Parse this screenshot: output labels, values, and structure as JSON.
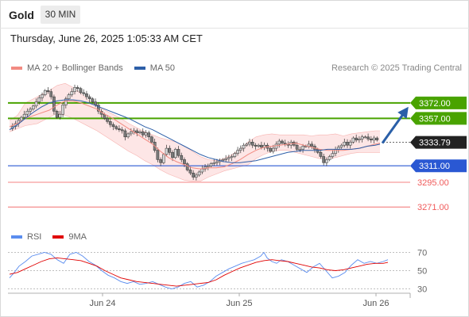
{
  "header": {
    "instrument": "Gold",
    "timeframe": "30 MIN",
    "datetime": "Thursday, June 26, 2025 1:05:33 AM CET"
  },
  "legend": {
    "price": [
      {
        "name": "MA 20 + Bollinger Bands",
        "color": "#f28b82"
      },
      {
        "name": "MA 50",
        "color": "#2d5fa8"
      }
    ],
    "rsi": [
      {
        "name": "RSI",
        "color": "#5b8def"
      },
      {
        "name": "9MA",
        "color": "#e00000"
      }
    ]
  },
  "credit": "Research © 2025 Trading Central",
  "colors": {
    "up": "#d6d6d6",
    "down": "#7a7a7a",
    "bull": "#49a300",
    "support": "#2a58d3",
    "sub": "#f05a5a",
    "arrow": "#2a5fa8",
    "last": "#222222"
  },
  "chart_data": {
    "type": "candlestick",
    "x_ticks": [
      "Jun 24",
      "Jun 25",
      "Jun 26"
    ],
    "ylim": [
      3255,
      3395
    ],
    "last_price": {
      "label": "3333.79",
      "value": 3333.79
    },
    "levels": [
      {
        "label": "3372.00",
        "value": 3372,
        "kind": "resistance"
      },
      {
        "label": "3357.00",
        "value": 3357,
        "kind": "resistance"
      },
      {
        "label": "3311.00",
        "value": 3311,
        "kind": "support"
      },
      {
        "label": "3295.00",
        "value": 3295,
        "kind": "sub"
      },
      {
        "label": "3271.00",
        "value": 3271,
        "kind": "sub"
      }
    ],
    "close_path": [
      3347,
      3349,
      3352,
      3355,
      3358,
      3361,
      3364,
      3366,
      3369,
      3373,
      3377,
      3380,
      3384,
      3383,
      3378,
      3364,
      3358,
      3361,
      3370,
      3376,
      3380,
      3383,
      3387,
      3386,
      3382,
      3381,
      3378,
      3376,
      3373,
      3370,
      3364,
      3361,
      3357,
      3354,
      3351,
      3349,
      3347,
      3346,
      3345,
      3339,
      3342,
      3344,
      3345,
      3343,
      3344,
      3341,
      3343,
      3339,
      3334,
      3326,
      3317,
      3314,
      3322,
      3328,
      3324,
      3319,
      3327,
      3321,
      3317,
      3313,
      3307,
      3304,
      3300,
      3302,
      3305,
      3308,
      3310,
      3311,
      3313,
      3314,
      3315,
      3316,
      3317,
      3318,
      3319,
      3320,
      3323,
      3326,
      3328,
      3331,
      3332,
      3334,
      3331,
      3330,
      3331,
      3329,
      3331,
      3328,
      3325,
      3328,
      3332,
      3335,
      3333,
      3332,
      3331,
      3334,
      3331,
      3327,
      3327,
      3330,
      3330,
      3332,
      3330,
      3327,
      3324,
      3320,
      3314,
      3317,
      3320,
      3323,
      3327,
      3329,
      3331,
      3334,
      3331,
      3334,
      3338,
      3336,
      3337,
      3339,
      3339,
      3337,
      3336,
      3338,
      3336
    ],
    "bollinger": {
      "upper": [
        [
          0,
          3355
        ],
        [
          10,
          3360
        ],
        [
          20,
          3372
        ],
        [
          35,
          3378
        ],
        [
          50,
          3384
        ],
        [
          60,
          3389
        ],
        [
          70,
          3391
        ],
        [
          80,
          3387
        ],
        [
          90,
          3381
        ],
        [
          100,
          3374
        ],
        [
          110,
          3369
        ],
        [
          120,
          3365
        ],
        [
          130,
          3361
        ],
        [
          140,
          3357
        ],
        [
          150,
          3352
        ],
        [
          160,
          3348
        ],
        [
          170,
          3344
        ],
        [
          180,
          3341
        ],
        [
          190,
          3338
        ],
        [
          200,
          3336
        ],
        [
          210,
          3334
        ],
        [
          220,
          3330
        ],
        [
          230,
          3325
        ],
        [
          240,
          3320
        ],
        [
          250,
          3317
        ],
        [
          260,
          3316
        ],
        [
          270,
          3318
        ],
        [
          280,
          3322
        ],
        [
          290,
          3327
        ],
        [
          300,
          3334
        ],
        [
          310,
          3339
        ],
        [
          320,
          3341
        ],
        [
          330,
          3342
        ],
        [
          340,
          3341
        ],
        [
          350,
          3341
        ],
        [
          360,
          3341
        ],
        [
          370,
          3341
        ],
        [
          380,
          3340
        ],
        [
          390,
          3341
        ],
        [
          400,
          3341
        ],
        [
          410,
          3342
        ],
        [
          420,
          3340
        ],
        [
          430,
          3342
        ],
        [
          440,
          3343
        ],
        [
          450,
          3344
        ],
        [
          460,
          3345
        ],
        [
          466,
          3345
        ]
      ],
      "lower": [
        [
          0,
          3344
        ],
        [
          10,
          3347
        ],
        [
          20,
          3350
        ],
        [
          35,
          3352
        ],
        [
          50,
          3358
        ],
        [
          60,
          3362
        ],
        [
          70,
          3360
        ],
        [
          80,
          3357
        ],
        [
          90,
          3353
        ],
        [
          100,
          3349
        ],
        [
          110,
          3345
        ],
        [
          120,
          3340
        ],
        [
          130,
          3335
        ],
        [
          140,
          3330
        ],
        [
          150,
          3325
        ],
        [
          160,
          3321
        ],
        [
          170,
          3316
        ],
        [
          180,
          3312
        ],
        [
          190,
          3307
        ],
        [
          200,
          3303
        ],
        [
          210,
          3300
        ],
        [
          220,
          3297
        ],
        [
          230,
          3296
        ],
        [
          240,
          3296
        ],
        [
          250,
          3300
        ],
        [
          260,
          3303
        ],
        [
          270,
          3306
        ],
        [
          280,
          3308
        ],
        [
          290,
          3310
        ],
        [
          300,
          3312
        ],
        [
          310,
          3318
        ],
        [
          320,
          3322
        ],
        [
          330,
          3325
        ],
        [
          340,
          3326
        ],
        [
          350,
          3326
        ],
        [
          360,
          3324
        ],
        [
          370,
          3322
        ],
        [
          380,
          3320
        ],
        [
          390,
          3318
        ],
        [
          400,
          3318
        ],
        [
          410,
          3319
        ],
        [
          420,
          3321
        ],
        [
          430,
          3323
        ],
        [
          440,
          3324
        ],
        [
          450,
          3324
        ],
        [
          460,
          3324
        ],
        [
          466,
          3324
        ]
      ],
      "ma20": [
        [
          0,
          3349
        ],
        [
          10,
          3352
        ],
        [
          20,
          3357
        ],
        [
          35,
          3361
        ],
        [
          50,
          3365
        ],
        [
          60,
          3370
        ],
        [
          70,
          3374
        ],
        [
          80,
          3374
        ],
        [
          90,
          3372
        ],
        [
          100,
          3369
        ],
        [
          110,
          3366
        ],
        [
          120,
          3361
        ],
        [
          130,
          3357
        ],
        [
          140,
          3352
        ],
        [
          150,
          3347
        ],
        [
          160,
          3342
        ],
        [
          170,
          3337
        ],
        [
          180,
          3332
        ],
        [
          190,
          3325
        ],
        [
          200,
          3319
        ],
        [
          210,
          3315
        ],
        [
          220,
          3312
        ],
        [
          230,
          3309
        ],
        [
          240,
          3308
        ],
        [
          250,
          3309
        ],
        [
          260,
          3309
        ],
        [
          270,
          3310
        ],
        [
          280,
          3313
        ],
        [
          290,
          3317
        ],
        [
          300,
          3322
        ],
        [
          310,
          3326
        ],
        [
          320,
          3329
        ],
        [
          330,
          3330
        ],
        [
          340,
          3331
        ],
        [
          350,
          3332
        ],
        [
          360,
          3333
        ],
        [
          370,
          3331
        ],
        [
          380,
          3329
        ],
        [
          390,
          3327
        ],
        [
          400,
          3326
        ],
        [
          410,
          3326
        ],
        [
          420,
          3326
        ],
        [
          430,
          3327
        ],
        [
          440,
          3328
        ],
        [
          450,
          3330
        ],
        [
          460,
          3332
        ],
        [
          466,
          3333
        ]
      ],
      "ma50": [
        [
          0,
          3346
        ],
        [
          10,
          3351
        ],
        [
          20,
          3357
        ],
        [
          30,
          3363
        ],
        [
          40,
          3368
        ],
        [
          50,
          3372
        ],
        [
          60,
          3374
        ],
        [
          70,
          3375
        ],
        [
          80,
          3375
        ],
        [
          90,
          3374
        ],
        [
          100,
          3372
        ],
        [
          110,
          3369
        ],
        [
          120,
          3366
        ],
        [
          130,
          3363
        ],
        [
          140,
          3360
        ],
        [
          150,
          3357
        ],
        [
          160,
          3353
        ],
        [
          170,
          3349
        ],
        [
          180,
          3346
        ],
        [
          190,
          3342
        ],
        [
          200,
          3338
        ],
        [
          210,
          3334
        ],
        [
          220,
          3330
        ],
        [
          230,
          3326
        ],
        [
          240,
          3322
        ],
        [
          250,
          3319
        ],
        [
          260,
          3317
        ],
        [
          270,
          3315
        ],
        [
          280,
          3314
        ],
        [
          290,
          3314
        ],
        [
          300,
          3315
        ],
        [
          310,
          3316
        ],
        [
          320,
          3318
        ],
        [
          330,
          3320
        ],
        [
          340,
          3322
        ],
        [
          350,
          3324
        ],
        [
          360,
          3325
        ],
        [
          370,
          3326
        ],
        [
          380,
          3326
        ],
        [
          390,
          3326
        ],
        [
          400,
          3327
        ],
        [
          410,
          3327
        ],
        [
          420,
          3327
        ],
        [
          430,
          3327
        ],
        [
          440,
          3328
        ],
        [
          450,
          3330
        ],
        [
          460,
          3331
        ],
        [
          466,
          3332
        ]
      ]
    },
    "forecast_arrow": {
      "from": 3333,
      "to": 3362
    },
    "rsi": {
      "ylim": [
        20,
        80
      ],
      "ticks": [
        {
          "label": "70",
          "value": 70
        },
        {
          "label": "50",
          "value": 50
        },
        {
          "label": "30",
          "value": 30
        }
      ],
      "rsi_path": [
        [
          0,
          42
        ],
        [
          6,
          48
        ],
        [
          12,
          55
        ],
        [
          20,
          60
        ],
        [
          28,
          66
        ],
        [
          36,
          68
        ],
        [
          44,
          70
        ],
        [
          52,
          68
        ],
        [
          60,
          62
        ],
        [
          68,
          58
        ],
        [
          76,
          68
        ],
        [
          84,
          70
        ],
        [
          92,
          66
        ],
        [
          100,
          60
        ],
        [
          108,
          56
        ],
        [
          116,
          50
        ],
        [
          124,
          45
        ],
        [
          132,
          42
        ],
        [
          140,
          38
        ],
        [
          148,
          36
        ],
        [
          156,
          38
        ],
        [
          164,
          35
        ],
        [
          172,
          36
        ],
        [
          180,
          38
        ],
        [
          188,
          35
        ],
        [
          196,
          32
        ],
        [
          204,
          30
        ],
        [
          212,
          32
        ],
        [
          220,
          36
        ],
        [
          228,
          38
        ],
        [
          236,
          32
        ],
        [
          244,
          34
        ],
        [
          252,
          38
        ],
        [
          260,
          44
        ],
        [
          268,
          48
        ],
        [
          276,
          52
        ],
        [
          284,
          55
        ],
        [
          292,
          58
        ],
        [
          300,
          60
        ],
        [
          308,
          62
        ],
        [
          316,
          66
        ],
        [
          320,
          70
        ],
        [
          324,
          64
        ],
        [
          330,
          60
        ],
        [
          336,
          58
        ],
        [
          342,
          62
        ],
        [
          350,
          60
        ],
        [
          358,
          56
        ],
        [
          366,
          52
        ],
        [
          374,
          48
        ],
        [
          382,
          54
        ],
        [
          390,
          58
        ],
        [
          398,
          50
        ],
        [
          406,
          42
        ],
        [
          414,
          44
        ],
        [
          422,
          48
        ],
        [
          430,
          56
        ],
        [
          438,
          62
        ],
        [
          446,
          58
        ],
        [
          454,
          60
        ],
        [
          462,
          58
        ],
        [
          470,
          60
        ],
        [
          476,
          62
        ]
      ],
      "ma_path": [
        [
          0,
          46
        ],
        [
          10,
          48
        ],
        [
          20,
          52
        ],
        [
          30,
          56
        ],
        [
          40,
          60
        ],
        [
          50,
          63
        ],
        [
          60,
          64
        ],
        [
          70,
          63
        ],
        [
          80,
          62
        ],
        [
          90,
          61
        ],
        [
          100,
          58
        ],
        [
          110,
          55
        ],
        [
          120,
          50
        ],
        [
          130,
          46
        ],
        [
          140,
          42
        ],
        [
          150,
          40
        ],
        [
          160,
          38
        ],
        [
          170,
          37
        ],
        [
          180,
          36
        ],
        [
          190,
          35
        ],
        [
          200,
          34
        ],
        [
          210,
          33
        ],
        [
          220,
          34
        ],
        [
          230,
          35
        ],
        [
          240,
          36
        ],
        [
          250,
          37
        ],
        [
          260,
          40
        ],
        [
          270,
          45
        ],
        [
          280,
          49
        ],
        [
          290,
          53
        ],
        [
          300,
          56
        ],
        [
          310,
          59
        ],
        [
          320,
          61
        ],
        [
          330,
          62
        ],
        [
          340,
          61
        ],
        [
          350,
          60
        ],
        [
          360,
          58
        ],
        [
          370,
          56
        ],
        [
          380,
          54
        ],
        [
          390,
          53
        ],
        [
          400,
          51
        ],
        [
          410,
          50
        ],
        [
          420,
          51
        ],
        [
          430,
          53
        ],
        [
          440,
          55
        ],
        [
          450,
          57
        ],
        [
          460,
          58
        ],
        [
          470,
          58
        ],
        [
          476,
          59
        ]
      ]
    }
  }
}
